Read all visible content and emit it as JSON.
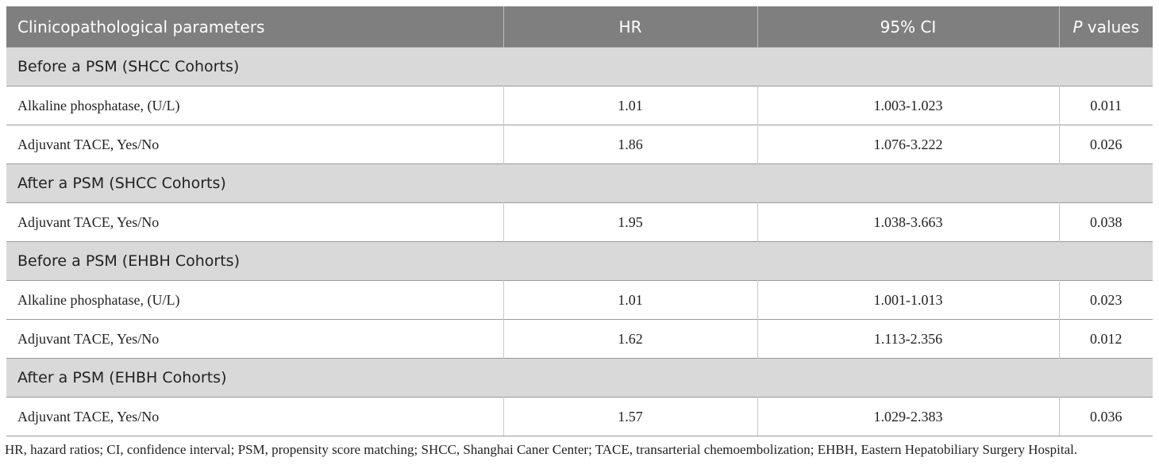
{
  "header": {
    "parameter": "Clinicopathological parameters",
    "hr": "HR",
    "ci": "95% CI",
    "p_italic": "P",
    "p_rest": " values"
  },
  "rows": [
    {
      "type": "section",
      "label": "Before a PSM (SHCC Cohorts)"
    },
    {
      "type": "data",
      "param": "Alkaline phosphatase, (U/L)",
      "hr": "1.01",
      "ci": "1.003-1.023",
      "p": "0.011"
    },
    {
      "type": "data",
      "param": "Adjuvant TACE, Yes/No",
      "hr": "1.86",
      "ci": "1.076-3.222",
      "p": "0.026"
    },
    {
      "type": "section",
      "label": "After a PSM (SHCC Cohorts)"
    },
    {
      "type": "data",
      "param": "Adjuvant TACE, Yes/No",
      "hr": "1.95",
      "ci": "1.038-3.663",
      "p": "0.038"
    },
    {
      "type": "section",
      "label": "Before a PSM (EHBH Cohorts)"
    },
    {
      "type": "data",
      "param": "Alkaline phosphatase, (U/L)",
      "hr": "1.01",
      "ci": "1.001-1.013",
      "p": "0.023"
    },
    {
      "type": "data",
      "param": "Adjuvant TACE, Yes/No",
      "hr": "1.62",
      "ci": "1.113-2.356",
      "p": "0.012"
    },
    {
      "type": "section",
      "label": "After a PSM (EHBH Cohorts)"
    },
    {
      "type": "data",
      "param": "Adjuvant TACE, Yes/No",
      "hr": "1.57",
      "ci": "1.029-2.383",
      "p": "0.036"
    }
  ],
  "footnote": "HR, hazard ratios; CI, confidence interval; PSM, propensity score matching; SHCC, Shanghai Caner Center; TACE, transarterial chemoembolization; EHBH, Eastern Hepatobiliary Surgery Hospital."
}
